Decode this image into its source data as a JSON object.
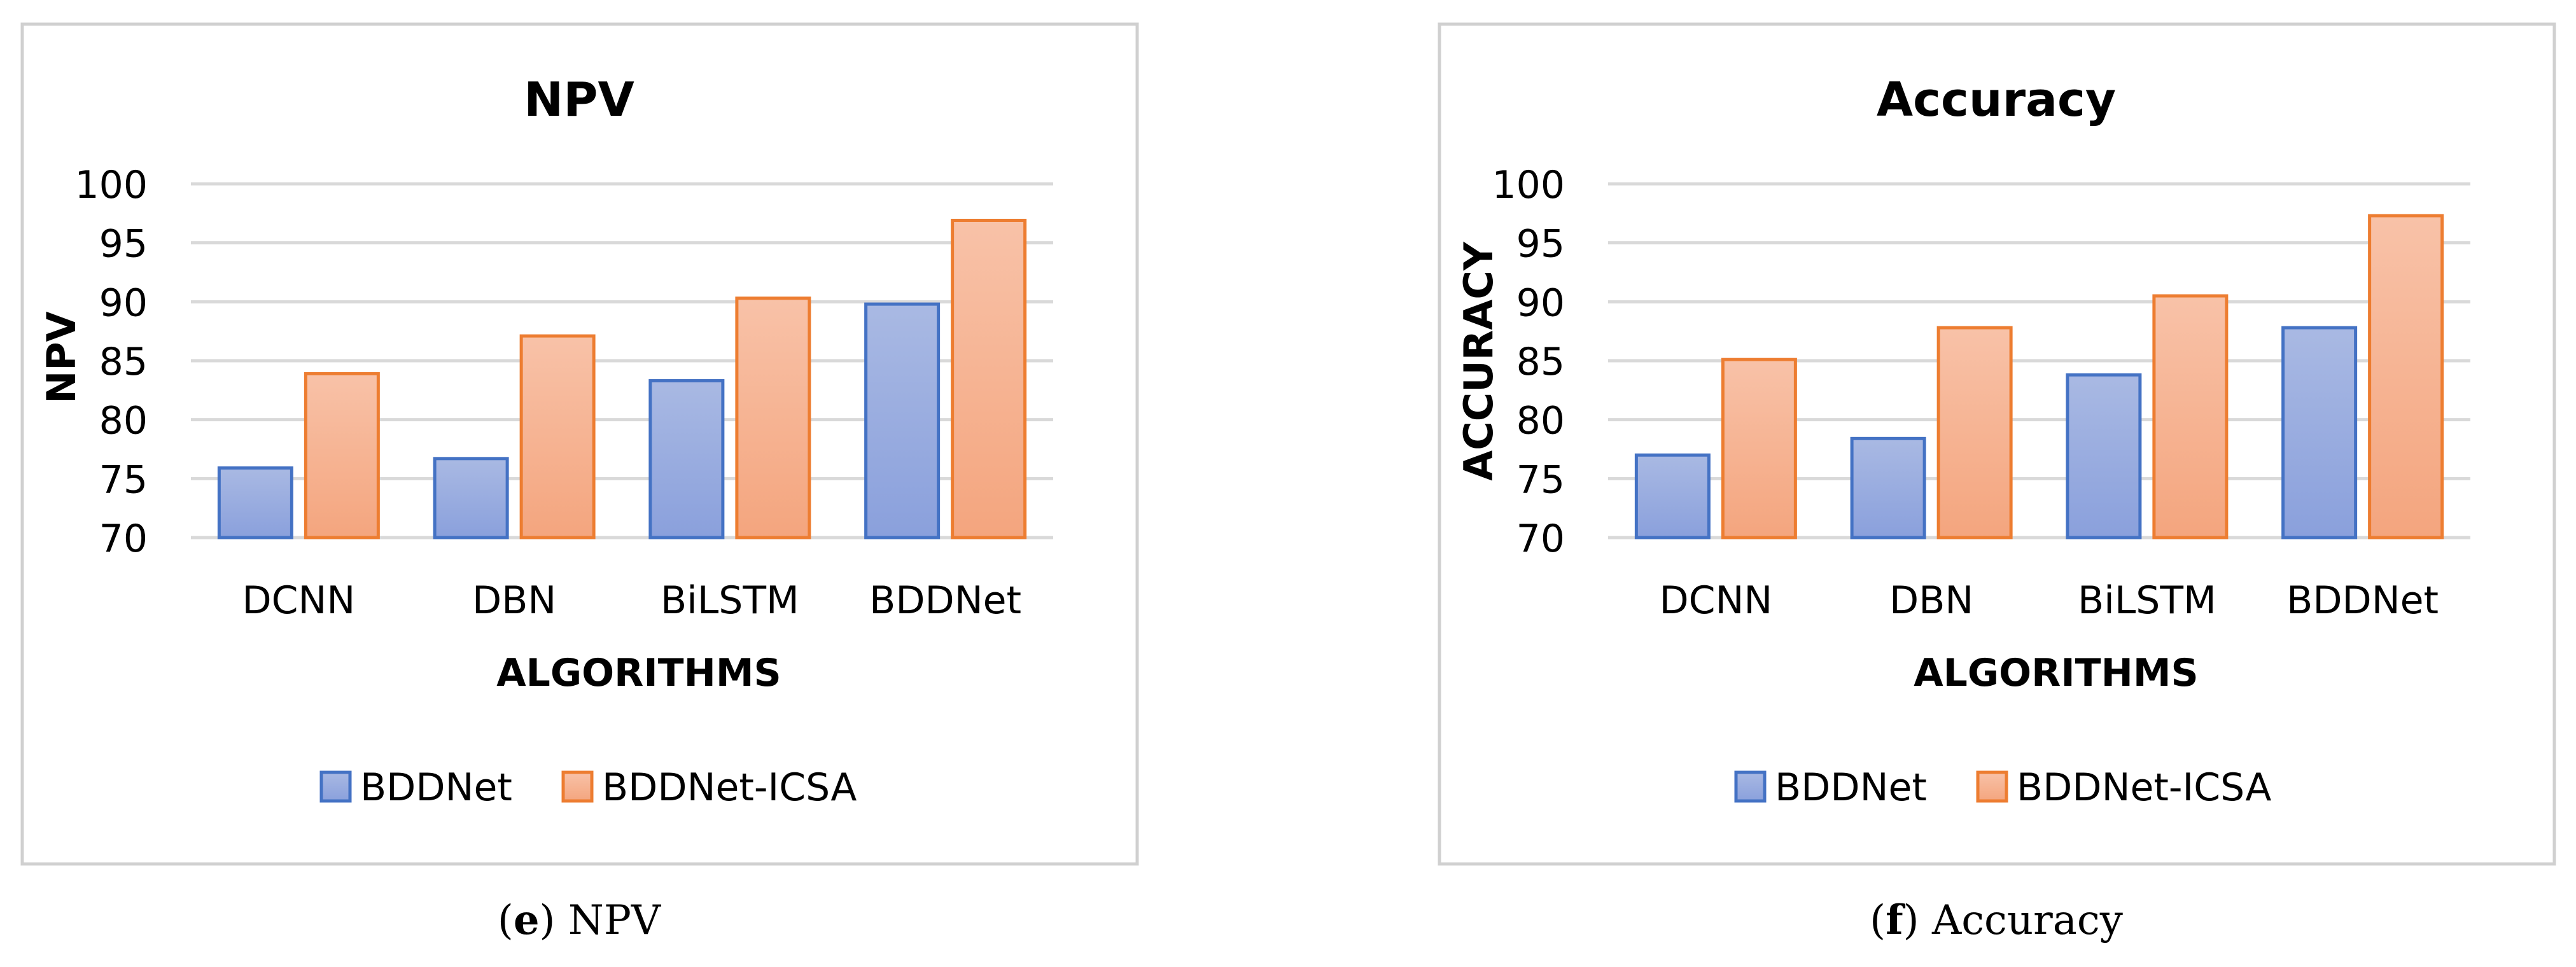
{
  "colors": {
    "series1_fill_top": "#a9b9e3",
    "series1_fill_bottom": "#8aa0dc",
    "series1_stroke": "#4472c4",
    "series2_fill_top": "#f8c2a8",
    "series2_fill_bottom": "#f4a57e",
    "series2_stroke": "#ed7d31",
    "grid": "#d9d9d9",
    "frame": "#d0d0d0",
    "text": "#000000"
  },
  "chart_data": [
    {
      "type": "bar",
      "title": "NPV",
      "xlabel": "ALGORITHMS",
      "ylabel": "NPV",
      "caption_letter": "e",
      "caption_text": "NPV",
      "categories": [
        "DCNN",
        "DBN",
        "BiLSTM",
        "BDDNet"
      ],
      "series": [
        {
          "name": "BDDNet",
          "values": [
            75.9,
            76.7,
            83.3,
            89.8
          ]
        },
        {
          "name": "BDDNet-ICSA",
          "values": [
            83.9,
            87.1,
            90.3,
            96.9
          ]
        }
      ],
      "ylim": [
        70,
        100
      ],
      "yticks": [
        70,
        75,
        80,
        85,
        90,
        95,
        100
      ],
      "grid": true,
      "legend_position": "bottom"
    },
    {
      "type": "bar",
      "title": "Accuracy",
      "xlabel": "ALGORITHMS",
      "ylabel": "ACCURACY",
      "caption_letter": "f",
      "caption_text": "Accuracy",
      "categories": [
        "DCNN",
        "DBN",
        "BiLSTM",
        "BDDNet"
      ],
      "series": [
        {
          "name": "BDDNet",
          "values": [
            77.0,
            78.4,
            83.8,
            87.8
          ]
        },
        {
          "name": "BDDNet-ICSA",
          "values": [
            85.1,
            87.8,
            90.5,
            97.3
          ]
        }
      ],
      "ylim": [
        70,
        100
      ],
      "yticks": [
        70,
        75,
        80,
        85,
        90,
        95,
        100
      ],
      "grid": true,
      "legend_position": "bottom"
    }
  ]
}
